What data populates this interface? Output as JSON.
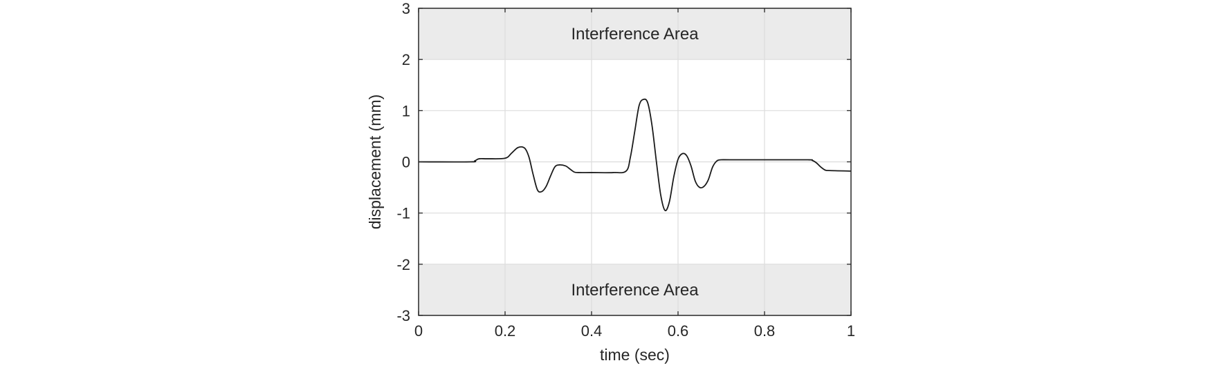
{
  "chart_data": {
    "type": "line",
    "title": "",
    "xlabel": "time (sec)",
    "ylabel": "displacement (mm)",
    "xlim": [
      0,
      1
    ],
    "ylim": [
      -3,
      3
    ],
    "xticks": [
      0,
      0.2,
      0.4,
      0.6,
      0.8,
      1
    ],
    "yticks": [
      -3,
      -2,
      -1,
      0,
      1,
      2,
      3
    ],
    "xtick_labels": [
      "0",
      "0.2",
      "0.4",
      "0.6",
      "0.8",
      "1"
    ],
    "ytick_labels": [
      "-3",
      "-2",
      "-1",
      "0",
      "1",
      "2",
      "3"
    ],
    "grid": true,
    "colors": {
      "line": "#1a1a1a",
      "band": "#ebebeb",
      "grid": "#dcdcdc",
      "axes": "#262626"
    },
    "bands": [
      {
        "label": "Interference Area",
        "y_range": [
          2,
          3
        ]
      },
      {
        "label": "Interference Area",
        "y_range": [
          -3,
          -2
        ]
      }
    ],
    "series": [
      {
        "x": [
          0,
          0.12,
          0.13,
          0.14,
          0.16,
          0.2,
          0.215,
          0.23,
          0.245,
          0.255,
          0.265,
          0.275,
          0.285,
          0.295,
          0.305,
          0.315,
          0.325,
          0.34,
          0.35,
          0.36,
          0.37,
          0.4,
          0.45,
          0.48,
          0.49,
          0.5,
          0.51,
          0.52,
          0.53,
          0.54,
          0.55,
          0.56,
          0.57,
          0.58,
          0.59,
          0.6,
          0.61,
          0.62,
          0.63,
          0.64,
          0.65,
          0.66,
          0.67,
          0.68,
          0.69,
          0.7,
          0.72,
          0.8,
          0.9,
          0.91,
          0.92,
          0.93,
          0.94,
          0.95,
          1.0
        ],
        "y": [
          0,
          0,
          0.02,
          0.06,
          0.06,
          0.07,
          0.17,
          0.28,
          0.27,
          0.1,
          -0.25,
          -0.55,
          -0.58,
          -0.48,
          -0.28,
          -0.1,
          -0.06,
          -0.08,
          -0.14,
          -0.2,
          -0.21,
          -0.21,
          -0.21,
          -0.18,
          0.1,
          0.6,
          1.1,
          1.22,
          1.15,
          0.7,
          0.0,
          -0.65,
          -0.95,
          -0.78,
          -0.3,
          0.05,
          0.16,
          0.12,
          -0.08,
          -0.38,
          -0.5,
          -0.48,
          -0.35,
          -0.1,
          0.02,
          0.04,
          0.04,
          0.04,
          0.04,
          0.03,
          -0.02,
          -0.1,
          -0.16,
          -0.17,
          -0.18
        ]
      }
    ]
  }
}
